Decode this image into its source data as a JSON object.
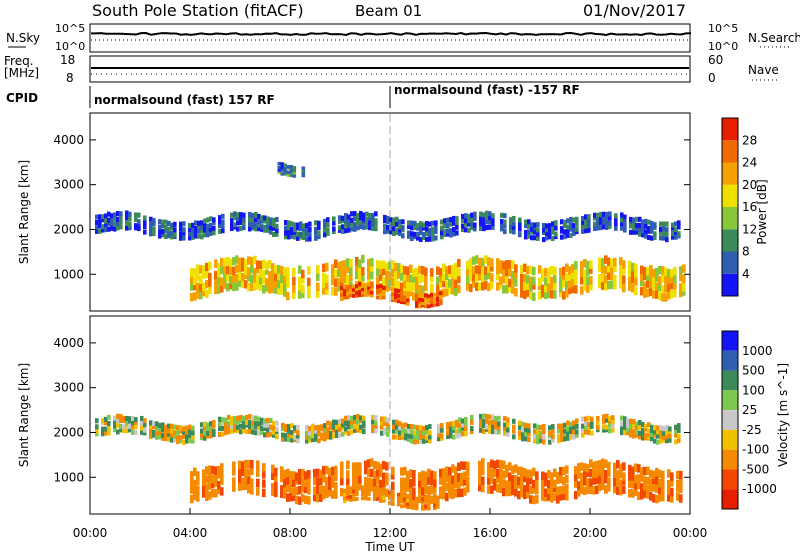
{
  "header": {
    "station": "South Pole Station (fitACF)",
    "beam": "Beam 01",
    "date": "01/Nov/2017"
  },
  "strip_labels": {
    "nsky": "N.Sky",
    "freq_line1": "Freq.",
    "freq_line2": "[MHz]",
    "cpid": "CPID",
    "nsearch": "N.Search",
    "nave": "Nave"
  },
  "strip_ticks": {
    "nsky_top": "10^5",
    "nsky_bottom": "10^0",
    "freq_top": "18",
    "freq_bottom": "8",
    "nsearch_top": "10^5",
    "nsearch_bottom": "10^0",
    "nave_top": "60",
    "nave_bottom": "0"
  },
  "cpid": {
    "segments": [
      {
        "start_hour": 0,
        "label": "normalsound (fast) 157 RF"
      },
      {
        "start_hour": 12,
        "label": "normalsound (fast) -157 RF"
      }
    ]
  },
  "colors": {
    "power": [
      "#1414f5",
      "#2e5fb0",
      "#3c8a5a",
      "#8ac63a",
      "#f0e000",
      "#f5a100",
      "#f06a00",
      "#e81e00"
    ],
    "velocity": [
      "#e81e00",
      "#f24800",
      "#f58a00",
      "#f0c000",
      "#c8c8c8",
      "#7ec850",
      "#3c8a5a",
      "#2e5fb0",
      "#1414f5"
    ]
  },
  "chart_data": [
    {
      "type": "heatmap",
      "panel": "power",
      "ylabel": "Slant Range [km]",
      "ylim": [
        180,
        4600
      ],
      "yticks": [
        "1000",
        "2000",
        "3000",
        "4000"
      ],
      "xlim": [
        0,
        24
      ],
      "xticks": [
        "00:00",
        "04:00",
        "08:00",
        "12:00",
        "16:00",
        "20:00",
        "00:00"
      ],
      "colorbar_label": "Power [dB]",
      "colorbar_ticks": [
        "4",
        "8",
        "12",
        "16",
        "20",
        "24",
        "28"
      ],
      "colorbar_range": [
        0,
        32
      ],
      "bands": [
        {
          "name": "2000 km echo",
          "start_hour": 0.2,
          "end_hour": 23.5,
          "range_km": [
            1900,
            2300
          ],
          "value_db": 6
        },
        {
          "name": "1000 km echo",
          "start_hour": 4.0,
          "end_hour": 23.8,
          "range_km": [
            600,
            1300
          ],
          "value_db": 20
        },
        {
          "name": "near range",
          "start_hour": 10.0,
          "end_hour": 14.0,
          "range_km": [
            400,
            700
          ],
          "value_db": 26
        },
        {
          "name": "3500 km patch",
          "start_hour": 7.5,
          "end_hour": 8.5,
          "range_km": [
            3300,
            3550
          ],
          "value_db": 8
        }
      ]
    },
    {
      "type": "heatmap",
      "panel": "velocity",
      "ylabel": "Slant Range [km]",
      "ylim": [
        180,
        4600
      ],
      "yticks": [
        "1000",
        "2000",
        "3000",
        "4000"
      ],
      "xlim": [
        0,
        24
      ],
      "xticks": [
        "00:00",
        "04:00",
        "08:00",
        "12:00",
        "16:00",
        "20:00",
        "00:00"
      ],
      "xlabel": "Time UT",
      "colorbar_label": "Velocity [m s^-1]",
      "colorbar_ticks": [
        "1000",
        "500",
        "100",
        "25",
        "-25",
        "-100",
        "-500",
        "-1000"
      ],
      "bands": [
        {
          "name": "2000 km echo",
          "start_hour": 0.2,
          "end_hour": 23.5,
          "range_km": [
            1900,
            2300
          ],
          "value_ms": 0
        },
        {
          "name": "1000 km echo",
          "start_hour": 4.0,
          "end_hour": 23.8,
          "range_km": [
            600,
            1300
          ],
          "value_ms": -400
        },
        {
          "name": "near range",
          "start_hour": 10.0,
          "end_hour": 14.0,
          "range_km": [
            400,
            700
          ],
          "value_ms": -300
        }
      ]
    }
  ]
}
